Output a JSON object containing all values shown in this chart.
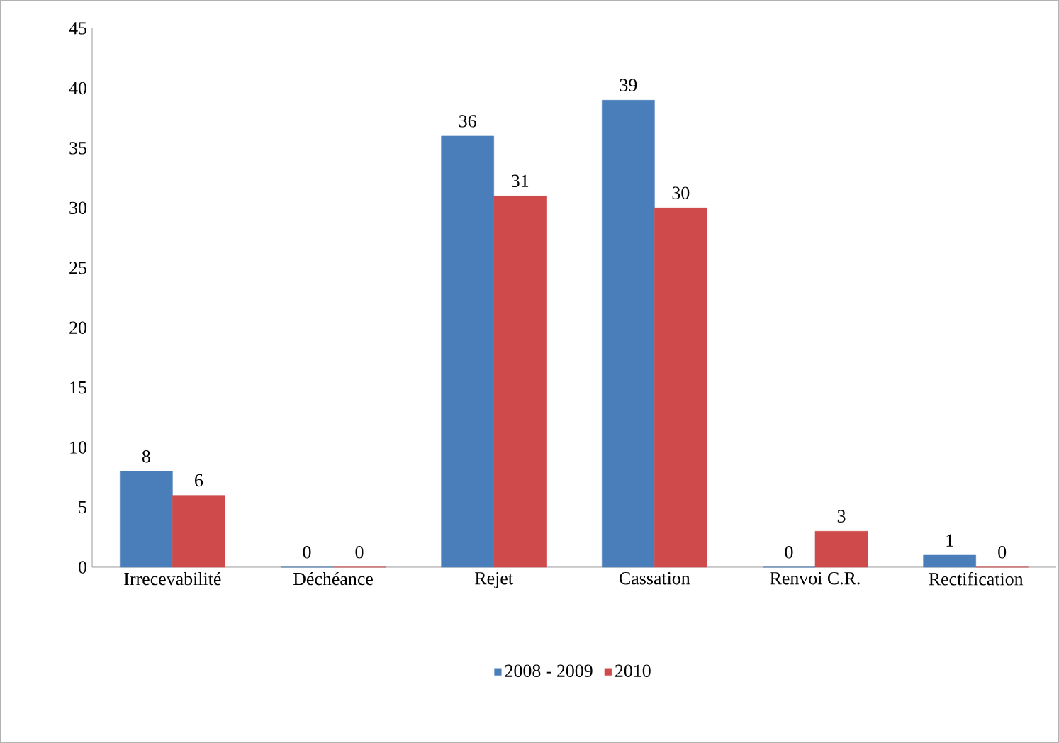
{
  "chart_data": {
    "type": "bar",
    "categories": [
      "Irrecevabilité",
      "Déchéance",
      "Rejet",
      "Cassation",
      "Renvoi C.R.",
      "Rectification"
    ],
    "series": [
      {
        "name": "2008 - 2009",
        "color": "#4a7ebb",
        "values": [
          8,
          0,
          36,
          39,
          0,
          1
        ]
      },
      {
        "name": "2010",
        "color": "#cf4a4a",
        "values": [
          6,
          0,
          31,
          30,
          3,
          0
        ]
      }
    ],
    "ylim": [
      0,
      45
    ],
    "yticks": [
      0,
      5,
      10,
      15,
      20,
      25,
      30,
      35,
      40,
      45
    ],
    "data_labels": true,
    "legend": "bottom",
    "grid": false
  }
}
